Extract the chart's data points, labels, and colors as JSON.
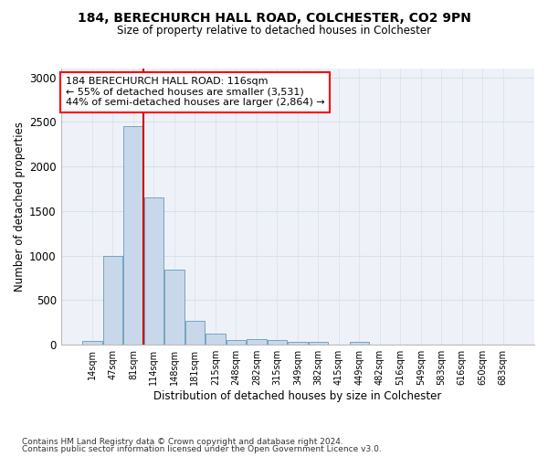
{
  "title1": "184, BERECHURCH HALL ROAD, COLCHESTER, CO2 9PN",
  "title2": "Size of property relative to detached houses in Colchester",
  "xlabel": "Distribution of detached houses by size in Colchester",
  "ylabel": "Number of detached properties",
  "footer1": "Contains HM Land Registry data © Crown copyright and database right 2024.",
  "footer2": "Contains public sector information licensed under the Open Government Licence v3.0.",
  "annotation_line1": "184 BERECHURCH HALL ROAD: 116sqm",
  "annotation_line2": "← 55% of detached houses are smaller (3,531)",
  "annotation_line3": "44% of semi-detached houses are larger (2,864) →",
  "bar_color": "#c8d8ea",
  "bar_edge_color": "#6699bb",
  "red_line_color": "#cc0000",
  "categories": [
    "14sqm",
    "47sqm",
    "81sqm",
    "114sqm",
    "148sqm",
    "181sqm",
    "215sqm",
    "248sqm",
    "282sqm",
    "315sqm",
    "349sqm",
    "382sqm",
    "415sqm",
    "449sqm",
    "482sqm",
    "516sqm",
    "549sqm",
    "583sqm",
    "616sqm",
    "650sqm",
    "683sqm"
  ],
  "values": [
    47,
    1000,
    2450,
    1650,
    840,
    270,
    130,
    50,
    60,
    50,
    30,
    30,
    0,
    30,
    0,
    0,
    0,
    0,
    0,
    0,
    0
  ],
  "red_line_x": 2.5,
  "ylim": [
    0,
    3100
  ],
  "yticks": [
    0,
    500,
    1000,
    1500,
    2000,
    2500,
    3000
  ],
  "grid_color": "#d8e0ec",
  "background_color": "#eef2f8"
}
